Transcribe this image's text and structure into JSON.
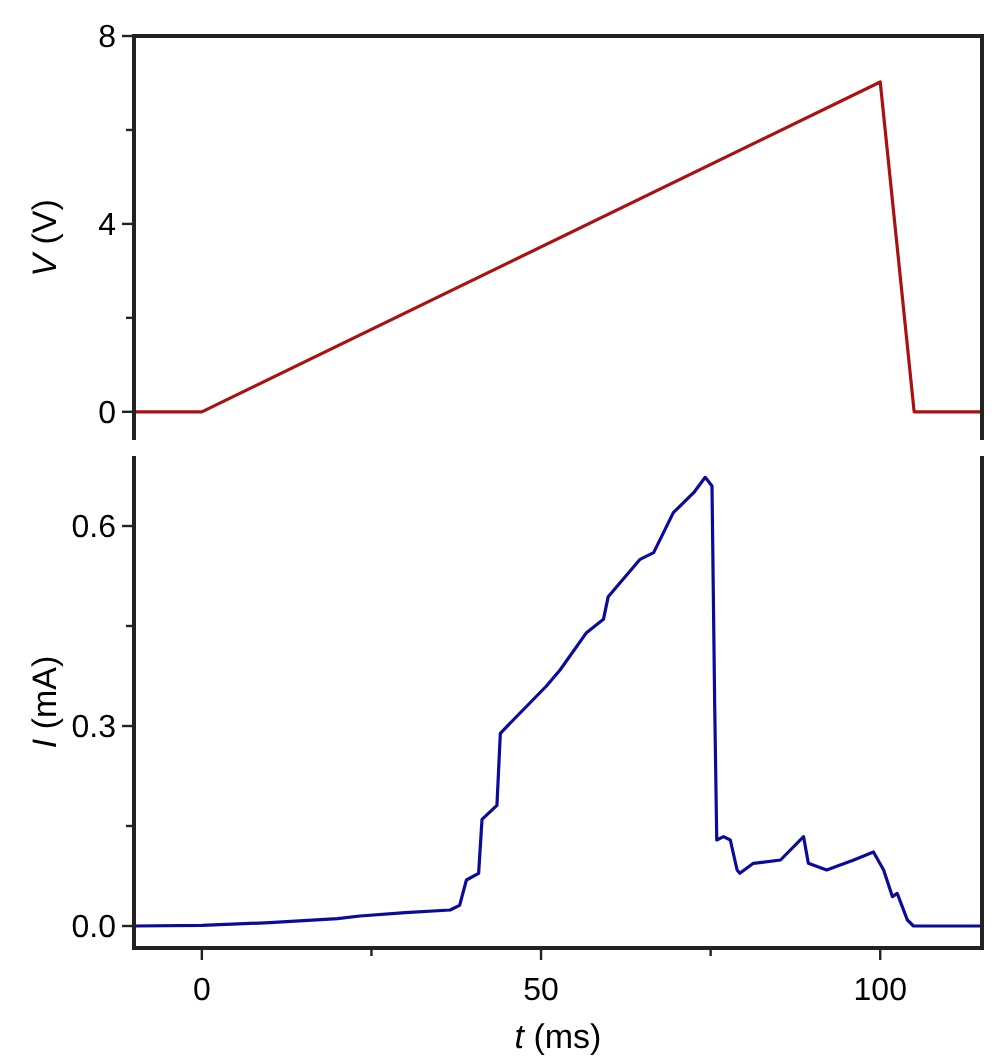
{
  "chart_data": [
    {
      "type": "line",
      "ylabel": "V (V)",
      "xlim": [
        -10,
        115
      ],
      "ylim": [
        -0.6,
        8
      ],
      "yticks": [
        0,
        {
          "value": 2,
          "label": null
        },
        4,
        {
          "value": 6,
          "label": null
        },
        8
      ],
      "tick_labels": "y",
      "grid": false,
      "marker": "none",
      "line_style": "solid",
      "series": [
        {
          "color": "#aa1111",
          "x": [
            -10,
            0,
            100,
            105,
            115
          ],
          "values": [
            0,
            0,
            7.02,
            0,
            0
          ]
        }
      ]
    },
    {
      "type": "line",
      "xlabel": "t (ms)",
      "ylabel": "I (mA)",
      "xlim": [
        -10,
        115
      ],
      "ylim": [
        -0.033,
        0.705
      ],
      "xticks": [
        0,
        {
          "value": 25,
          "label": null
        },
        50,
        {
          "value": 75,
          "label": null
        },
        100
      ],
      "yticks": [
        {
          "value": 0,
          "label": "0.0"
        },
        {
          "value": 0.15,
          "label": null
        },
        0.3,
        {
          "value": 0.45,
          "label": null
        },
        0.6
      ],
      "grid": false,
      "marker": "none",
      "line_style": "solid",
      "series": [
        {
          "color": "#0b0b9b",
          "x": [
            -10,
            0,
            10,
            20,
            23.3,
            30,
            36.6,
            38,
            39,
            40.8,
            41.3,
            43.5,
            44,
            45.9,
            50.8,
            52.8,
            56.7,
            59.2,
            59.9,
            64.6,
            66.6,
            69.5,
            72.5,
            74.2,
            75.2,
            75.6,
            75.9,
            76.9,
            77.9,
            78.9,
            79.3,
            81.3,
            85.3,
            88.7,
            89.4,
            92.1,
            96.1,
            99,
            100.5,
            101.8,
            102.5,
            104,
            104.9,
            115
          ],
          "values": [
            0,
            0.001,
            0.005,
            0.011,
            0.015,
            0.02,
            0.024,
            0.031,
            0.069,
            0.079,
            0.16,
            0.181,
            0.289,
            0.309,
            0.36,
            0.384,
            0.44,
            0.46,
            0.494,
            0.55,
            0.56,
            0.62,
            0.65,
            0.673,
            0.66,
            0.33,
            0.129,
            0.134,
            0.129,
            0.084,
            0.079,
            0.094,
            0.099,
            0.134,
            0.094,
            0.084,
            0.099,
            0.111,
            0.084,
            0.044,
            0.049,
            0.009,
            0,
            0
          ]
        }
      ]
    }
  ]
}
